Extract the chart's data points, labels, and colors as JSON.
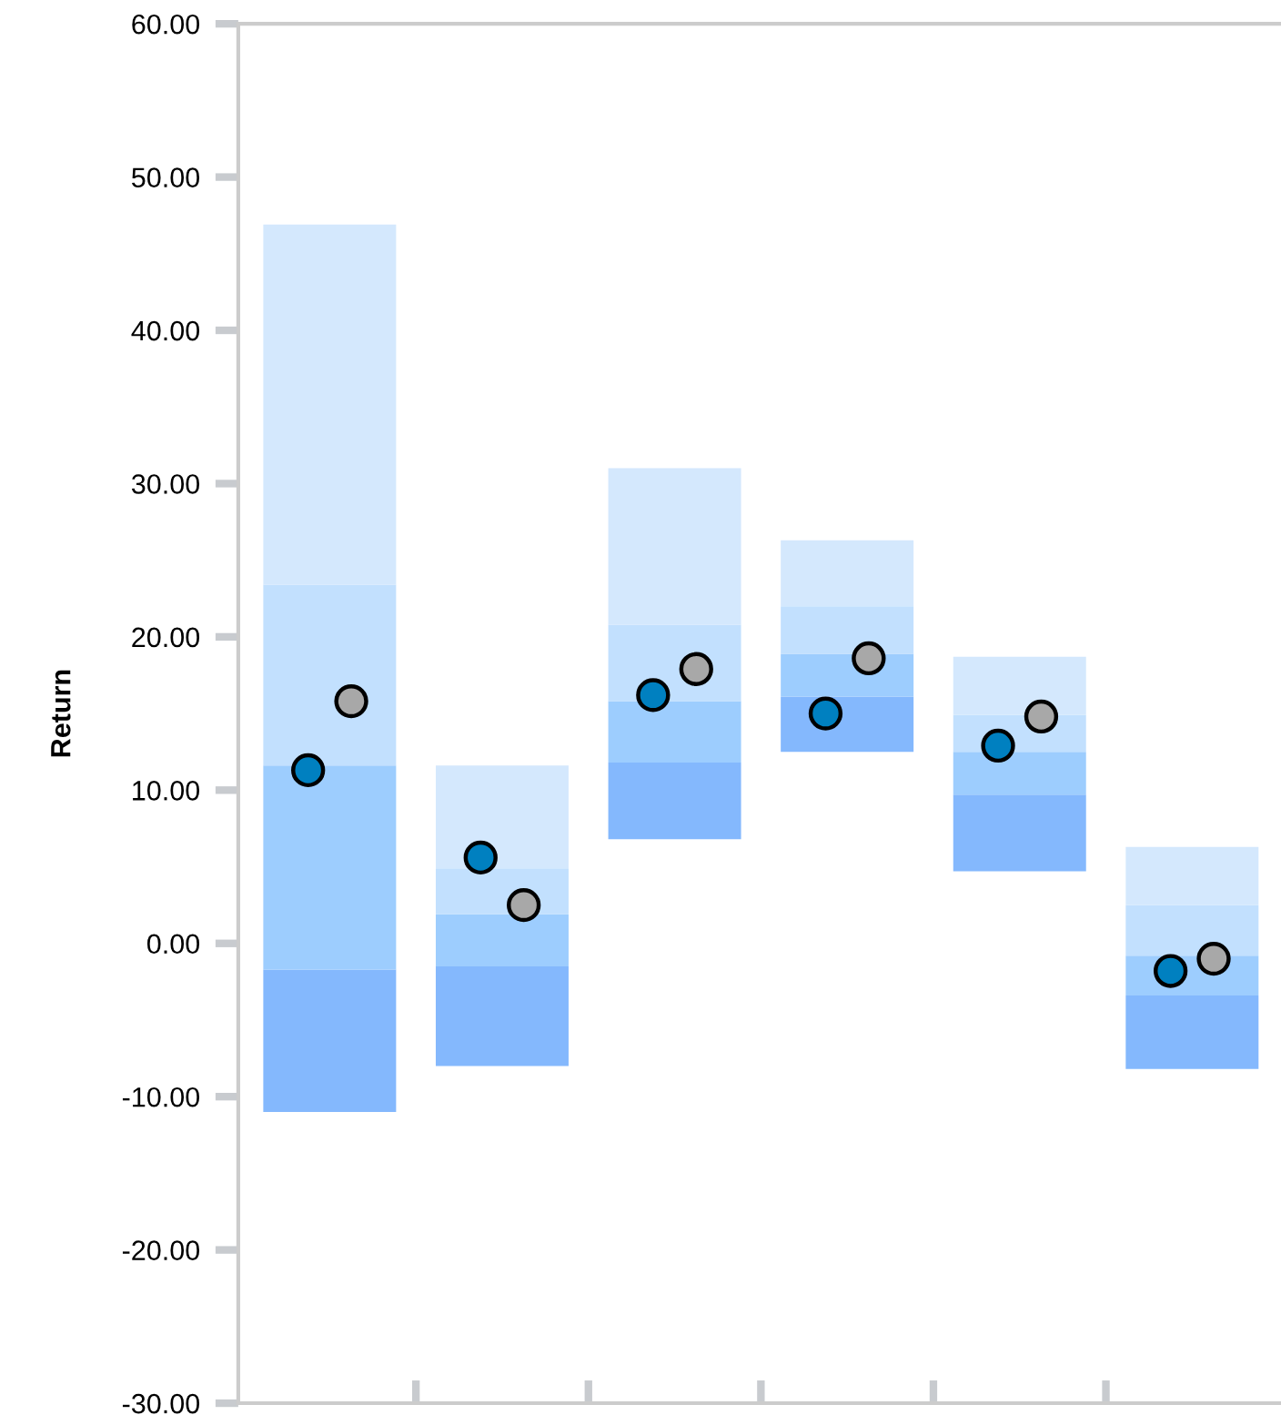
{
  "chart_data": {
    "type": "bar",
    "ylabel": "Return",
    "categories": [
      null,
      null,
      null,
      null,
      null,
      null
    ],
    "series": [
      {
        "color": "#84b8fd",
        "base": [
          -11.0,
          -8.0,
          6.8,
          12.5,
          4.7,
          -8.2
        ],
        "values": [
          9.3,
          6.5,
          5.0,
          3.6,
          5.0,
          4.8
        ]
      },
      {
        "color": "#9dcdfe",
        "base": [
          -1.7,
          -1.5,
          11.8,
          16.1,
          9.7,
          -3.4
        ],
        "values": [
          13.3,
          3.4,
          4.0,
          2.8,
          2.8,
          2.6
        ]
      },
      {
        "color": "#c2e0fe",
        "base": [
          11.6,
          1.9,
          15.8,
          18.9,
          12.5,
          -0.8
        ],
        "values": [
          11.8,
          3.0,
          5.0,
          3.1,
          2.4,
          3.3
        ]
      },
      {
        "color": "#d4e8fd",
        "base": [
          23.4,
          4.9,
          20.8,
          22.0,
          14.9,
          2.5
        ],
        "values": [
          23.5,
          6.7,
          10.2,
          4.3,
          3.8,
          3.8
        ]
      },
      {
        "type": "scatter",
        "color": "#0080c0",
        "marker": "circle",
        "values": [
          11.3,
          5.6,
          16.2,
          15.0,
          12.9,
          -1.8
        ]
      },
      {
        "type": "scatter",
        "color": "#a8a8a8",
        "marker": "circle",
        "values": [
          15.8,
          2.5,
          17.9,
          18.6,
          14.8,
          -1.0
        ]
      }
    ],
    "ylim": [
      -30,
      60
    ],
    "yticks": [
      {
        "value": -30,
        "label": "-30.00"
      },
      {
        "value": -20,
        "label": "-20.00"
      },
      {
        "value": -10,
        "label": "-10.00"
      },
      {
        "value": 0,
        "label": "0.00"
      },
      {
        "value": 10,
        "label": "10.00"
      },
      {
        "value": 20,
        "label": "20.00"
      },
      {
        "value": 30,
        "label": "30.00"
      },
      {
        "value": 40,
        "label": "40.00"
      },
      {
        "value": 50,
        "label": "50.00"
      },
      {
        "value": 60,
        "label": "60.00"
      }
    ],
    "grid": false
  }
}
